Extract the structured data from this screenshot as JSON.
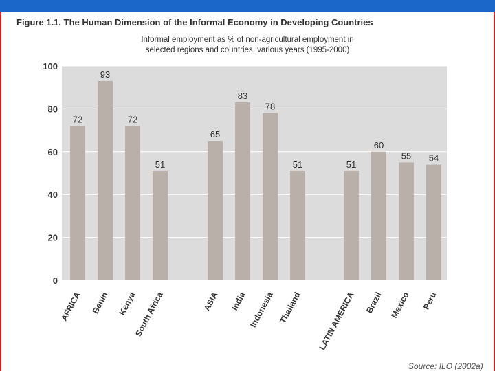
{
  "header": {
    "figure_title": "Figure 1.1. The Human Dimension of the Informal Economy in Developing Countries",
    "subtitle_line1": "Informal employment as % of non-agricultural employment in",
    "subtitle_line2": "selected regions and countries, various years (1995-2000)",
    "source": "Source: ILO (2002a)"
  },
  "colors": {
    "top_bar": "#1a66c9",
    "border": "#cc2222",
    "plot_bg": "#dcdcdc",
    "bar": "#b8b0a9",
    "text": "#333333"
  },
  "chart_data": {
    "type": "bar",
    "title": "Informal employment as % of non-agricultural employment in selected regions and countries, various years (1995-2000)",
    "xlabel": "",
    "ylabel": "",
    "ylim": [
      0,
      100
    ],
    "yticks": [
      0,
      20,
      40,
      60,
      80,
      100
    ],
    "grid": true,
    "groups": [
      {
        "name": "AFRICA",
        "categories": [
          "AFRICA",
          "Benin",
          "Kenya",
          "South Africa"
        ],
        "values": [
          72,
          93,
          72,
          51
        ]
      },
      {
        "name": "ASIA",
        "categories": [
          "ASIA",
          "India",
          "Indonesia",
          "Thailand"
        ],
        "values": [
          65,
          83,
          78,
          51
        ]
      },
      {
        "name": "LATIN AMERICA",
        "categories": [
          "LATIN AMERICA",
          "Brazil",
          "Mexico",
          "Peru"
        ],
        "values": [
          51,
          60,
          55,
          54
        ]
      }
    ]
  }
}
